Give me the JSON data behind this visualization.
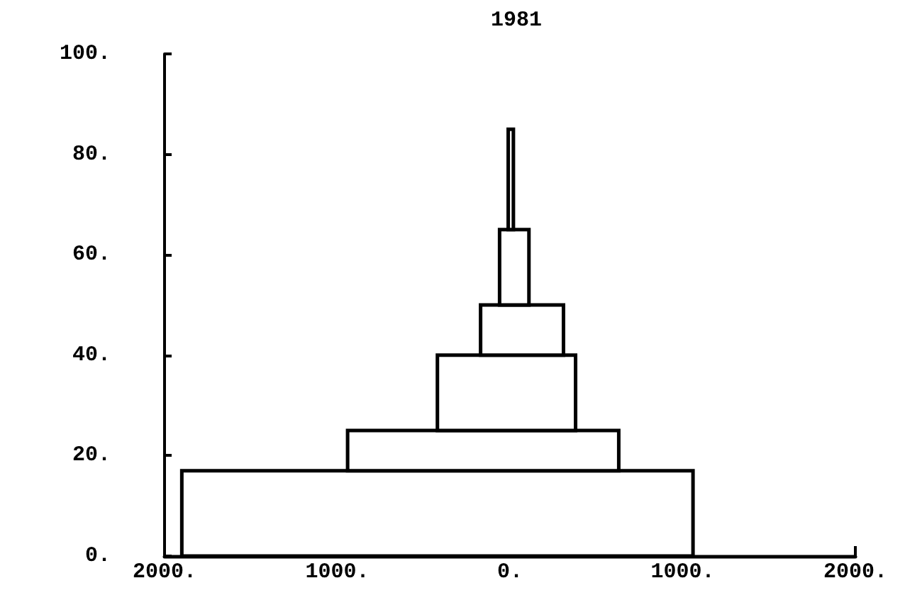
{
  "chart_data": {
    "type": "histogram",
    "orientation": "horizontal",
    "title": "1981",
    "bins": [
      0,
      17,
      25,
      40,
      50,
      65,
      85
    ],
    "color": "#000000",
    "base": [
      -1900,
      -940,
      -420,
      -170,
      -60,
      -10
    ],
    "values": [
      2960,
      1570,
      800,
      480,
      170,
      30
    ],
    "xlim": [
      -2000,
      2000
    ],
    "xticks": [
      {
        "value": -2000,
        "label": "2000."
      },
      {
        "value": -1000,
        "label": "1000."
      },
      {
        "value": 0,
        "label": "0."
      },
      {
        "value": 1000,
        "label": "1000."
      },
      {
        "value": 2000,
        "label": "2000."
      }
    ],
    "ylim": [
      0,
      100
    ],
    "yticks": [
      {
        "value": 0,
        "label": "0."
      },
      {
        "value": 20,
        "label": "20."
      },
      {
        "value": 40,
        "label": "40."
      },
      {
        "value": 60,
        "label": "60."
      },
      {
        "value": 80,
        "label": "80."
      },
      {
        "value": 100,
        "label": "100."
      }
    ],
    "grid": false
  }
}
